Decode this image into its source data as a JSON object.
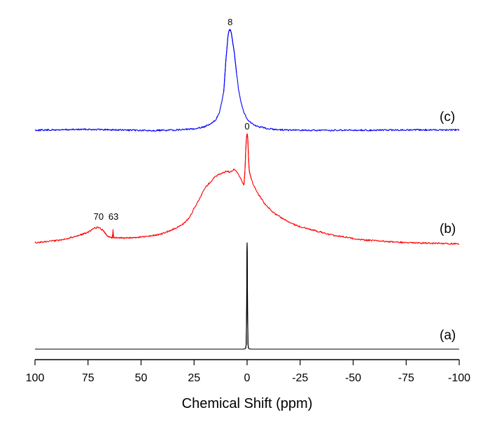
{
  "chart_data": {
    "type": "line",
    "title": "",
    "xlabel": "Chemical Shift (ppm)",
    "ylabel": "",
    "xlim": [
      100,
      -100
    ],
    "x_reversed": true,
    "grid": false,
    "x_ticks": [
      "100",
      "75",
      "50",
      "25",
      "0",
      "-25",
      "-50",
      "-75",
      "-100"
    ],
    "x_tick_values": [
      100,
      75,
      50,
      25,
      0,
      -25,
      -50,
      -75,
      -100
    ],
    "series": [
      {
        "label": "(c)",
        "color": "#0000ff",
        "peaks": [
          {
            "label": "8",
            "ppm": 8
          }
        ],
        "points": [
          [
            100,
            0
          ],
          [
            90,
            0.3
          ],
          [
            80,
            0.9
          ],
          [
            75,
            1.2
          ],
          [
            70,
            0.9
          ],
          [
            60,
            0.2
          ],
          [
            50,
            -0.4
          ],
          [
            45,
            -0.5
          ],
          [
            40,
            -0.3
          ],
          [
            35,
            0.1
          ],
          [
            30,
            0.8
          ],
          [
            25,
            2
          ],
          [
            20,
            5
          ],
          [
            17,
            9
          ],
          [
            15,
            14
          ],
          [
            13,
            25
          ],
          [
            11,
            55
          ],
          [
            10,
            100
          ],
          [
            9,
            135
          ],
          [
            8.5,
            142
          ],
          [
            8,
            143
          ],
          [
            7.5,
            140
          ],
          [
            7,
            130
          ],
          [
            6,
            110
          ],
          [
            5,
            82
          ],
          [
            4,
            58
          ],
          [
            3,
            42
          ],
          [
            2,
            30
          ],
          [
            1,
            22
          ],
          [
            0,
            16
          ],
          [
            -2,
            10
          ],
          [
            -5,
            5
          ],
          [
            -10,
            2
          ],
          [
            -15,
            0.6
          ],
          [
            -20,
            0
          ],
          [
            -40,
            -0.4
          ],
          [
            -60,
            0
          ],
          [
            -80,
            0.3
          ],
          [
            -100,
            0.5
          ]
        ]
      },
      {
        "label": "(b)",
        "color": "#ff0000",
        "peaks": [
          {
            "label": "70",
            "ppm": 70
          },
          {
            "label": "63",
            "ppm": 63
          },
          {
            "label": "0",
            "ppm": 0
          }
        ],
        "points": [
          [
            100,
            1
          ],
          [
            95,
            2.5
          ],
          [
            90,
            4
          ],
          [
            85,
            7
          ],
          [
            80,
            11
          ],
          [
            75,
            16
          ],
          [
            72,
            22
          ],
          [
            70,
            23
          ],
          [
            68,
            19
          ],
          [
            66,
            11
          ],
          [
            64.5,
            9
          ],
          [
            63.5,
            8
          ],
          [
            63.2,
            20
          ],
          [
            63,
            8
          ],
          [
            62,
            8
          ],
          [
            55,
            8
          ],
          [
            50,
            9
          ],
          [
            45,
            11
          ],
          [
            40,
            14
          ],
          [
            35,
            20
          ],
          [
            30,
            28
          ],
          [
            27,
            38
          ],
          [
            25,
            50
          ],
          [
            22,
            66
          ],
          [
            20,
            79
          ],
          [
            17,
            89
          ],
          [
            15,
            96
          ],
          [
            13,
            99
          ],
          [
            11,
            101
          ],
          [
            10,
            103
          ],
          [
            9,
            103
          ],
          [
            8,
            102
          ],
          [
            7,
            104
          ],
          [
            6,
            106
          ],
          [
            5,
            104
          ],
          [
            4,
            99
          ],
          [
            3,
            93
          ],
          [
            2,
            86
          ],
          [
            1.5,
            83
          ],
          [
            1,
            104
          ],
          [
            0.6,
            136
          ],
          [
            0.3,
            152
          ],
          [
            0,
            156
          ],
          [
            -0.3,
            152
          ],
          [
            -0.6,
            128
          ],
          [
            -1,
            104
          ],
          [
            -2,
            92
          ],
          [
            -3,
            84
          ],
          [
            -5,
            72
          ],
          [
            -8,
            58
          ],
          [
            -12,
            45
          ],
          [
            -16,
            37
          ],
          [
            -20,
            30
          ],
          [
            -25,
            24
          ],
          [
            -30,
            20
          ],
          [
            -35,
            16
          ],
          [
            -40,
            12
          ],
          [
            -45,
            10
          ],
          [
            -50,
            7
          ],
          [
            -55,
            5
          ],
          [
            -60,
            4
          ],
          [
            -70,
            2
          ],
          [
            -80,
            1
          ],
          [
            -90,
            0
          ],
          [
            -100,
            -0.5
          ]
        ]
      },
      {
        "label": "(a)",
        "color": "#000000",
        "peaks": [],
        "points": [
          [
            100,
            0
          ],
          [
            2,
            0
          ],
          [
            1,
            0.3
          ],
          [
            0.6,
            1.5
          ],
          [
            0.4,
            8
          ],
          [
            0.2,
            60
          ],
          [
            0.1,
            140
          ],
          [
            0,
            152
          ],
          [
            -0.1,
            140
          ],
          [
            -0.2,
            60
          ],
          [
            -0.4,
            8
          ],
          [
            -0.6,
            1.5
          ],
          [
            -1,
            0.3
          ],
          [
            -2,
            0
          ],
          [
            -100,
            0
          ]
        ]
      }
    ]
  }
}
